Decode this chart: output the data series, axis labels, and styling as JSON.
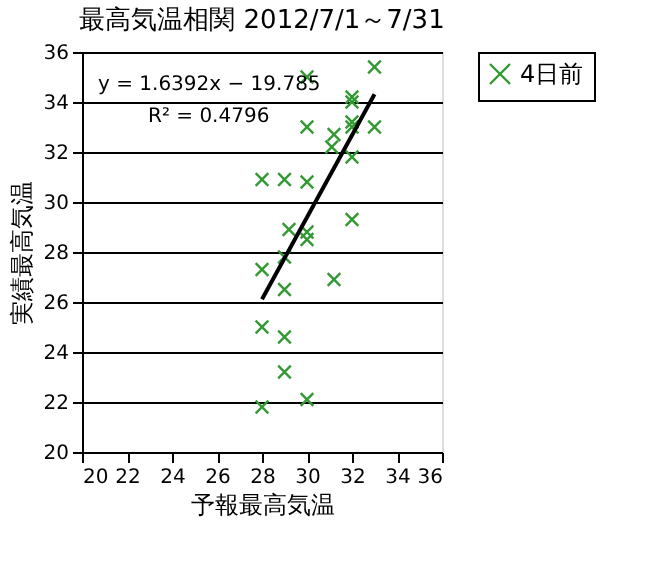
{
  "chart_data": {
    "type": "scatter",
    "title": "最高気温相関 2012/7/1～7/31",
    "xlabel": "予報最高気温",
    "ylabel": "実績最高気温",
    "xlim": [
      20,
      36
    ],
    "xticks": [
      20,
      22,
      24,
      26,
      28,
      30,
      32,
      34,
      36
    ],
    "ylim": [
      20,
      36
    ],
    "yticks": [
      20,
      22,
      24,
      26,
      28,
      30,
      32,
      34,
      36
    ],
    "grid": "y",
    "legend": "right",
    "annotations": [
      "y = 1.6392x − 19.785",
      "R² = 0.4796"
    ],
    "series": [
      {
        "name": "4日前",
        "color": "#339933",
        "marker": "cross",
        "x": [
          30,
          33,
          32,
          32,
          30,
          31.2,
          32,
          32,
          33,
          31.1,
          32,
          28,
          29,
          30,
          32,
          29.2,
          30,
          30,
          28,
          29,
          29,
          31.2,
          28,
          29,
          29,
          28,
          30
        ],
        "values": [
          35,
          35.4,
          34.2,
          34,
          33,
          32.7,
          33.2,
          33,
          33,
          32.2,
          31.8,
          30.9,
          30.9,
          30.8,
          29.3,
          28.9,
          28.8,
          28.5,
          27.3,
          27.8,
          26.5,
          26.9,
          25,
          24.6,
          23.2,
          21.8,
          22.1
        ]
      },
      {
        "type": "line",
        "color": "#000000",
        "x": [
          28,
          33
        ],
        "values": [
          26.11,
          34.31
        ]
      }
    ]
  }
}
